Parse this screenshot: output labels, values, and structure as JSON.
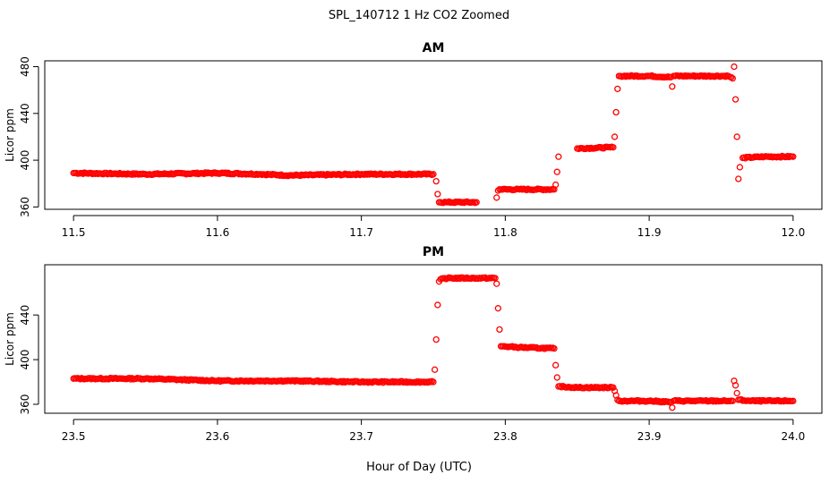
{
  "figure_title": "SPL_140712  1 Hz CO2 Zoomed",
  "shared_xlabel": "Hour of Day (UTC)",
  "chart_data": [
    {
      "type": "scatter",
      "title": "AM",
      "ylabel": "Licor ppm",
      "xlabel": "",
      "xlim": [
        11.48,
        12.02
      ],
      "ylim": [
        358,
        485
      ],
      "xticks": [
        "11.5",
        "11.6",
        "11.7",
        "11.8",
        "11.9",
        "12.0"
      ],
      "yticks": [
        "360",
        "400",
        "440",
        "480"
      ],
      "grid": false,
      "marker_color": "#ff0000",
      "series": [
        {
          "x": [
            11.5,
            11.55,
            11.6,
            11.63,
            11.65,
            11.7,
            11.75,
            11.752,
            11.753,
            11.754,
            11.755,
            11.76,
            11.78,
            11.794,
            11.795,
            11.796,
            11.797,
            11.81,
            11.834,
            11.835,
            11.836,
            11.837,
            11.85,
            11.875,
            11.876,
            11.877,
            11.878,
            11.879,
            11.88,
            11.9,
            11.915,
            11.916,
            11.917,
            11.93,
            11.955,
            11.958,
            11.959,
            11.96,
            11.961,
            11.962,
            11.963,
            11.965,
            11.98,
            12.0
          ],
          "y": [
            389,
            388,
            389,
            388,
            387,
            388,
            388,
            382,
            371,
            364,
            364,
            364,
            364,
            368,
            374,
            375,
            375,
            375,
            375,
            379,
            390,
            403,
            410,
            411,
            420,
            441,
            461,
            472,
            472,
            472,
            471,
            463,
            472,
            472,
            472,
            470,
            480,
            452,
            420,
            384,
            394,
            402,
            403,
            403
          ]
        }
      ]
    },
    {
      "type": "scatter",
      "title": "PM",
      "ylabel": "Licor ppm",
      "xlabel": "",
      "xlim": [
        23.48,
        24.02
      ],
      "ylim": [
        352,
        485
      ],
      "xticks": [
        "23.5",
        "23.6",
        "23.7",
        "23.8",
        "23.9",
        "24.0"
      ],
      "yticks": [
        "360",
        "400",
        "440"
      ],
      "grid": false,
      "marker_color": "#ff0000",
      "series": [
        {
          "x": [
            23.5,
            23.55,
            23.6,
            23.65,
            23.7,
            23.75,
            23.751,
            23.752,
            23.753,
            23.754,
            23.755,
            23.76,
            23.78,
            23.793,
            23.794,
            23.795,
            23.796,
            23.797,
            23.81,
            23.834,
            23.835,
            23.836,
            23.837,
            23.85,
            23.875,
            23.876,
            23.877,
            23.878,
            23.88,
            23.9,
            23.915,
            23.916,
            23.917,
            23.93,
            23.955,
            23.958,
            23.959,
            23.96,
            23.961,
            23.962,
            23.97,
            23.985,
            24.0
          ],
          "y": [
            383,
            383,
            381,
            381,
            380,
            380,
            391,
            418,
            449,
            470,
            472,
            473,
            473,
            473,
            468,
            446,
            427,
            412,
            411,
            410,
            395,
            384,
            376,
            375,
            375,
            372,
            368,
            364,
            363,
            363,
            362,
            357,
            363,
            363,
            363,
            363,
            381,
            377,
            370,
            364,
            363,
            363,
            363
          ]
        }
      ]
    }
  ]
}
